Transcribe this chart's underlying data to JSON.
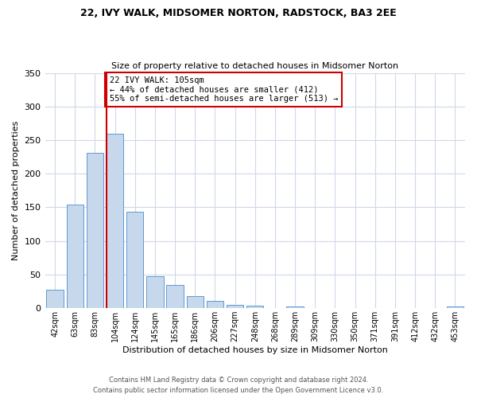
{
  "title": "22, IVY WALK, MIDSOMER NORTON, RADSTOCK, BA3 2EE",
  "subtitle": "Size of property relative to detached houses in Midsomer Norton",
  "xlabel": "Distribution of detached houses by size in Midsomer Norton",
  "ylabel": "Number of detached properties",
  "bar_color": "#c8d8ec",
  "bar_edge_color": "#5b9bd5",
  "categories": [
    "42sqm",
    "63sqm",
    "83sqm",
    "104sqm",
    "124sqm",
    "145sqm",
    "165sqm",
    "186sqm",
    "206sqm",
    "227sqm",
    "248sqm",
    "268sqm",
    "289sqm",
    "309sqm",
    "330sqm",
    "350sqm",
    "371sqm",
    "391sqm",
    "412sqm",
    "432sqm",
    "453sqm"
  ],
  "values": [
    28,
    154,
    231,
    260,
    143,
    48,
    34,
    18,
    11,
    5,
    4,
    0,
    3,
    0,
    0,
    0,
    0,
    0,
    0,
    0,
    3
  ],
  "vline_index": 3,
  "vline_color": "#cc0000",
  "annotation_title": "22 IVY WALK: 105sqm",
  "annotation_line1": "← 44% of detached houses are smaller (412)",
  "annotation_line2": "55% of semi-detached houses are larger (513) →",
  "annotation_box_color": "#ffffff",
  "annotation_box_edge": "#cc0000",
  "ylim": [
    0,
    350
  ],
  "yticks": [
    0,
    50,
    100,
    150,
    200,
    250,
    300,
    350
  ],
  "background_color": "#ffffff",
  "grid_color": "#d0d8e8",
  "footer1": "Contains HM Land Registry data © Crown copyright and database right 2024.",
  "footer2": "Contains public sector information licensed under the Open Government Licence v3.0."
}
